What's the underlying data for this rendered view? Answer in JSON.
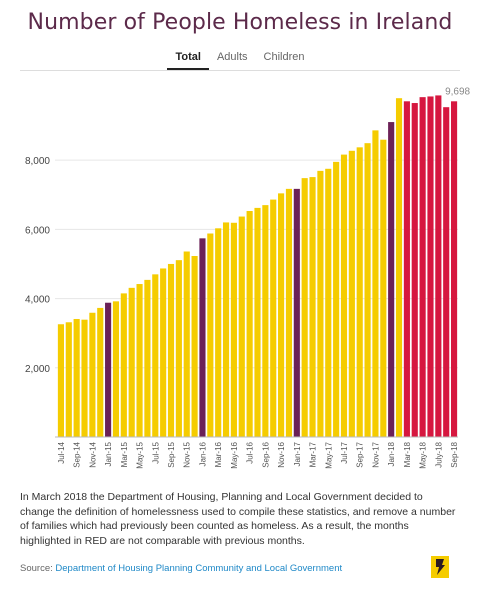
{
  "title": "Number of People Homeless in Ireland",
  "tabs": [
    {
      "label": "Total",
      "active": true
    },
    {
      "label": "Adults",
      "active": false
    },
    {
      "label": "Children",
      "active": false
    }
  ],
  "note": "In March 2018 the Department of Housing, Planning and Local Government decided to change the definition of homelessness used to compile these statistics, and remove a number of families which had previously been counted as homeless. As a result, the months highlighted in RED are not comparable with previous months.",
  "source": {
    "prefix": "Source:",
    "link": "Department of Housing Planning Community and Local Government"
  },
  "colors": {
    "regular": "#f5cc00",
    "january": "#6b2157",
    "not_comparable": "#d6173f"
  },
  "chart_data": {
    "type": "bar",
    "categories": [
      "Jul-14",
      "Aug-14",
      "Sep-14",
      "Oct-14",
      "Nov-14",
      "Dec-14",
      "Jan-15",
      "Feb-15",
      "Mar-15",
      "Apr-15",
      "May-15",
      "Jun-15",
      "Jul-15",
      "Aug-15",
      "Sep-15",
      "Oct-15",
      "Nov-15",
      "Dec-15",
      "Jan-16",
      "Feb-16",
      "Mar-16",
      "Apr-16",
      "May-16",
      "Jun-16",
      "Jul-16",
      "Aug-16",
      "Sep-16",
      "Oct-16",
      "Nov-16",
      "Dec-16",
      "Jan-17",
      "Feb-17",
      "Mar-17",
      "Apr-17",
      "May-17",
      "Jun-17",
      "Jul-17",
      "Aug-17",
      "Sep-17",
      "Oct-17",
      "Nov-17",
      "Dec-17",
      "Jan-18",
      "Feb-18",
      "Mar-18",
      "Apr-18",
      "May-18",
      "Jun-18",
      "July-18",
      "Aug-18",
      "Sep-18"
    ],
    "tick_labels": [
      "Jul-14",
      "Sep-14",
      "Nov-14",
      "Jan-15",
      "Mar-15",
      "May-15",
      "Jul-15",
      "Sep-15",
      "Nov-15",
      "Jan-16",
      "Mar-16",
      "May-16",
      "Jul-16",
      "Sep-16",
      "Nov-16",
      "Jan-17",
      "Mar-17",
      "May-17",
      "Jul-17",
      "Sep-17",
      "Nov-17",
      "Jan-18",
      "Mar-18",
      "May-18",
      "July-18",
      "Sep-18"
    ],
    "values": [
      3258,
      3315,
      3410,
      3390,
      3590,
      3730,
      3880,
      3920,
      4150,
      4310,
      4420,
      4540,
      4700,
      4870,
      5000,
      5110,
      5360,
      5230,
      5740,
      5880,
      6030,
      6200,
      6190,
      6370,
      6530,
      6620,
      6700,
      6860,
      7040,
      7170,
      7170,
      7480,
      7510,
      7690,
      7750,
      7950,
      8160,
      8270,
      8370,
      8490,
      8860,
      8590,
      9100,
      9790,
      9700,
      9650,
      9820,
      9840,
      9870,
      9530,
      9700
    ],
    "groups": [
      "regular",
      "regular",
      "regular",
      "regular",
      "regular",
      "regular",
      "january",
      "regular",
      "regular",
      "regular",
      "regular",
      "regular",
      "regular",
      "regular",
      "regular",
      "regular",
      "regular",
      "regular",
      "january",
      "regular",
      "regular",
      "regular",
      "regular",
      "regular",
      "regular",
      "regular",
      "regular",
      "regular",
      "regular",
      "regular",
      "january",
      "regular",
      "regular",
      "regular",
      "regular",
      "regular",
      "regular",
      "regular",
      "regular",
      "regular",
      "regular",
      "regular",
      "january",
      "regular",
      "not_comparable",
      "not_comparable",
      "not_comparable",
      "not_comparable",
      "not_comparable",
      "not_comparable",
      "not_comparable"
    ],
    "ylim": [
      0,
      10200
    ],
    "yticks": [
      "2,000",
      "4,000",
      "6,000",
      "8,000"
    ],
    "ytick_values": [
      2000,
      4000,
      6000,
      8000
    ],
    "last_label": "9,698",
    "grid": true
  }
}
